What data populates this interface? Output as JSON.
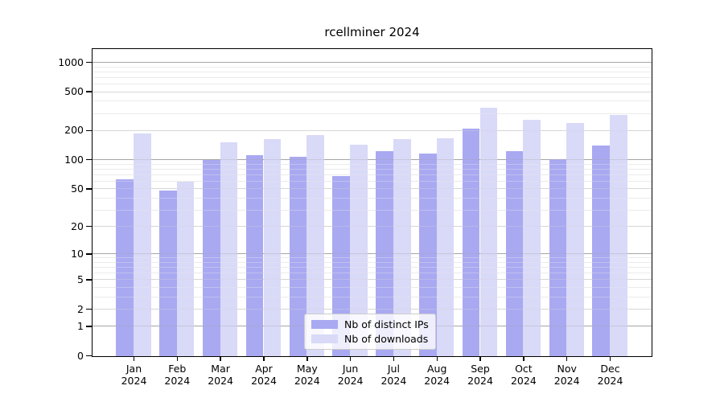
{
  "figure": {
    "title": "rcellminer 2024"
  },
  "chart_data": {
    "type": "bar",
    "title": "rcellminer 2024",
    "categories": [
      "Jan 2024",
      "Feb 2024",
      "Mar 2024",
      "Apr 2024",
      "May 2024",
      "Jun 2024",
      "Jul 2024",
      "Aug 2024",
      "Sep 2024",
      "Oct 2024",
      "Nov 2024",
      "Dec 2024"
    ],
    "series": [
      {
        "name": "Nb of distinct IPs",
        "color": "#a9a9f2",
        "values": [
          64,
          48,
          100,
          112,
          108,
          68,
          123,
          116,
          213,
          123,
          103,
          142
        ]
      },
      {
        "name": "Nb of downloads",
        "color": "#d9d9f8",
        "values": [
          190,
          60,
          154,
          165,
          180,
          143,
          166,
          169,
          345,
          262,
          241,
          290
        ]
      }
    ],
    "xlabel": "",
    "ylabel": "",
    "yscale": "log1p",
    "ylim": [
      0,
      1430
    ],
    "yticks": [
      1000,
      500,
      200,
      100,
      50,
      20,
      10,
      5,
      2,
      1,
      0
    ],
    "major_decade_ticks": [
      1,
      10,
      100,
      1000
    ],
    "minor_gridlines": [
      900,
      800,
      700,
      600,
      400,
      300,
      90,
      80,
      70,
      60,
      40,
      30,
      9,
      8,
      7,
      6,
      4,
      3
    ],
    "grid": "on",
    "legend_position": "lower-center"
  },
  "colors": {
    "major_grid": "#a6a6a6",
    "mid_grid": "#d6d6d6",
    "minor_grid": "#ebebeb",
    "spine": "#000000",
    "background": "#ffffff"
  }
}
